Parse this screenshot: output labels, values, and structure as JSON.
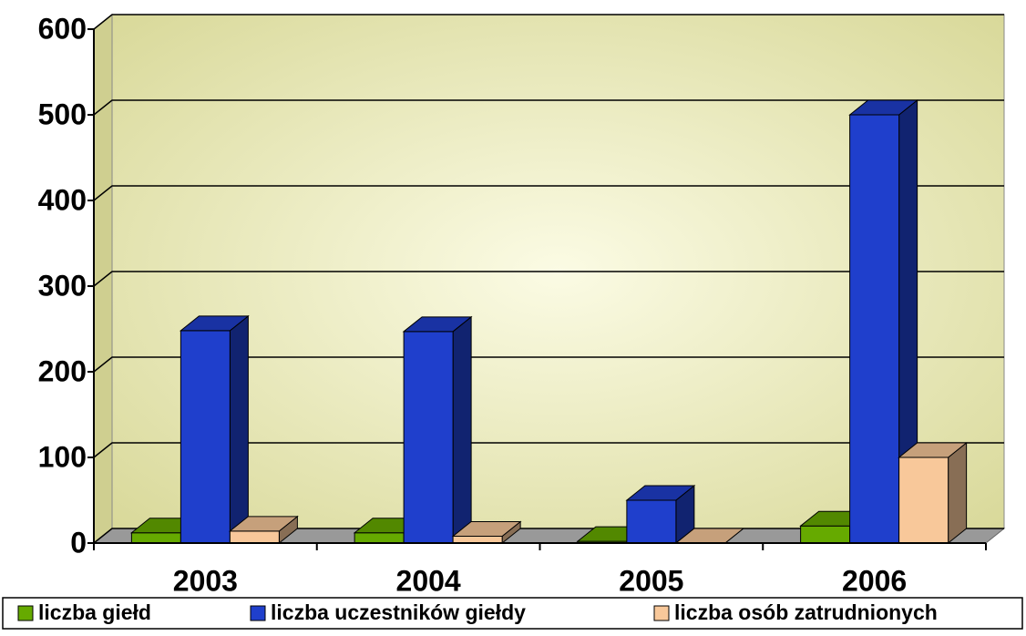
{
  "chart_data": {
    "type": "bar3d",
    "categories": [
      "2003",
      "2004",
      "2005",
      "2006"
    ],
    "series": [
      {
        "name": "liczba giełd",
        "color": "#66aa00",
        "values": [
          12,
          12,
          2,
          20
        ]
      },
      {
        "name": "liczba uczestników giełdy",
        "color": "#1f3fcc",
        "values": [
          248,
          247,
          50,
          500
        ]
      },
      {
        "name": "liczba osób zatrudnionych",
        "color": "#f8c89a",
        "values": [
          14,
          8,
          0,
          100
        ]
      }
    ],
    "ylim": [
      0,
      600
    ],
    "yticks": [
      0,
      100,
      200,
      300,
      400,
      500,
      600
    ],
    "grid": true,
    "legend": "bottom"
  }
}
